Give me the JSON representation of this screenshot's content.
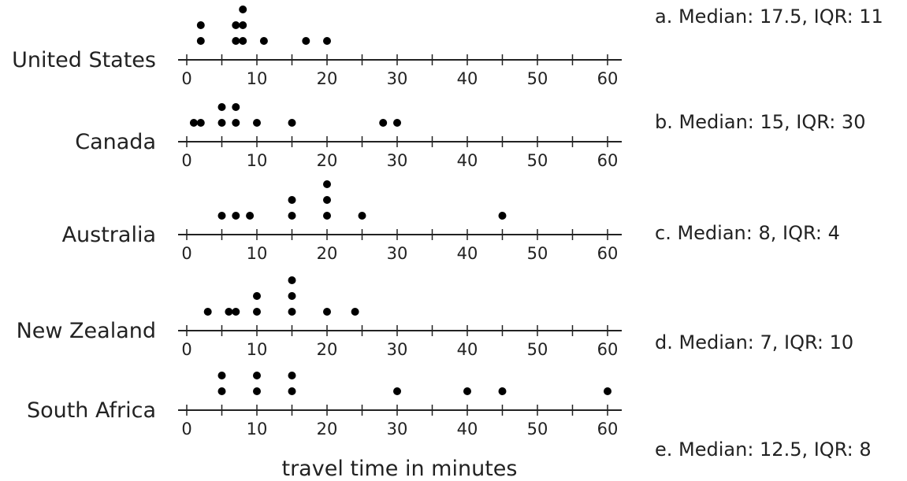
{
  "chart_data": {
    "type": "scatter",
    "subtype": "dot-plot",
    "xlabel": "travel time in minutes",
    "xlim": [
      0,
      60
    ],
    "ticks": [
      0,
      10,
      20,
      30,
      40,
      50,
      60
    ],
    "series": [
      {
        "name": "United States",
        "values": [
          2,
          2,
          7,
          7,
          8,
          8,
          8,
          11,
          17,
          20
        ]
      },
      {
        "name": "Canada",
        "values": [
          1,
          2,
          5,
          5,
          7,
          7,
          10,
          15,
          28,
          30
        ]
      },
      {
        "name": "Australia",
        "values": [
          5,
          7,
          9,
          15,
          15,
          20,
          20,
          20,
          25,
          45
        ]
      },
      {
        "name": "New Zealand",
        "values": [
          3,
          6,
          7,
          10,
          10,
          15,
          15,
          15,
          20,
          24
        ]
      },
      {
        "name": "South Africa",
        "values": [
          5,
          5,
          10,
          10,
          15,
          15,
          30,
          40,
          45,
          60
        ]
      }
    ]
  },
  "options": [
    "a. Median: 17.5, IQR: 11",
    "b. Median: 15, IQR: 30",
    "c. Median: 8, IQR: 4",
    "d. Median: 7, IQR: 10",
    "e. Median: 12.5, IQR: 8"
  ]
}
